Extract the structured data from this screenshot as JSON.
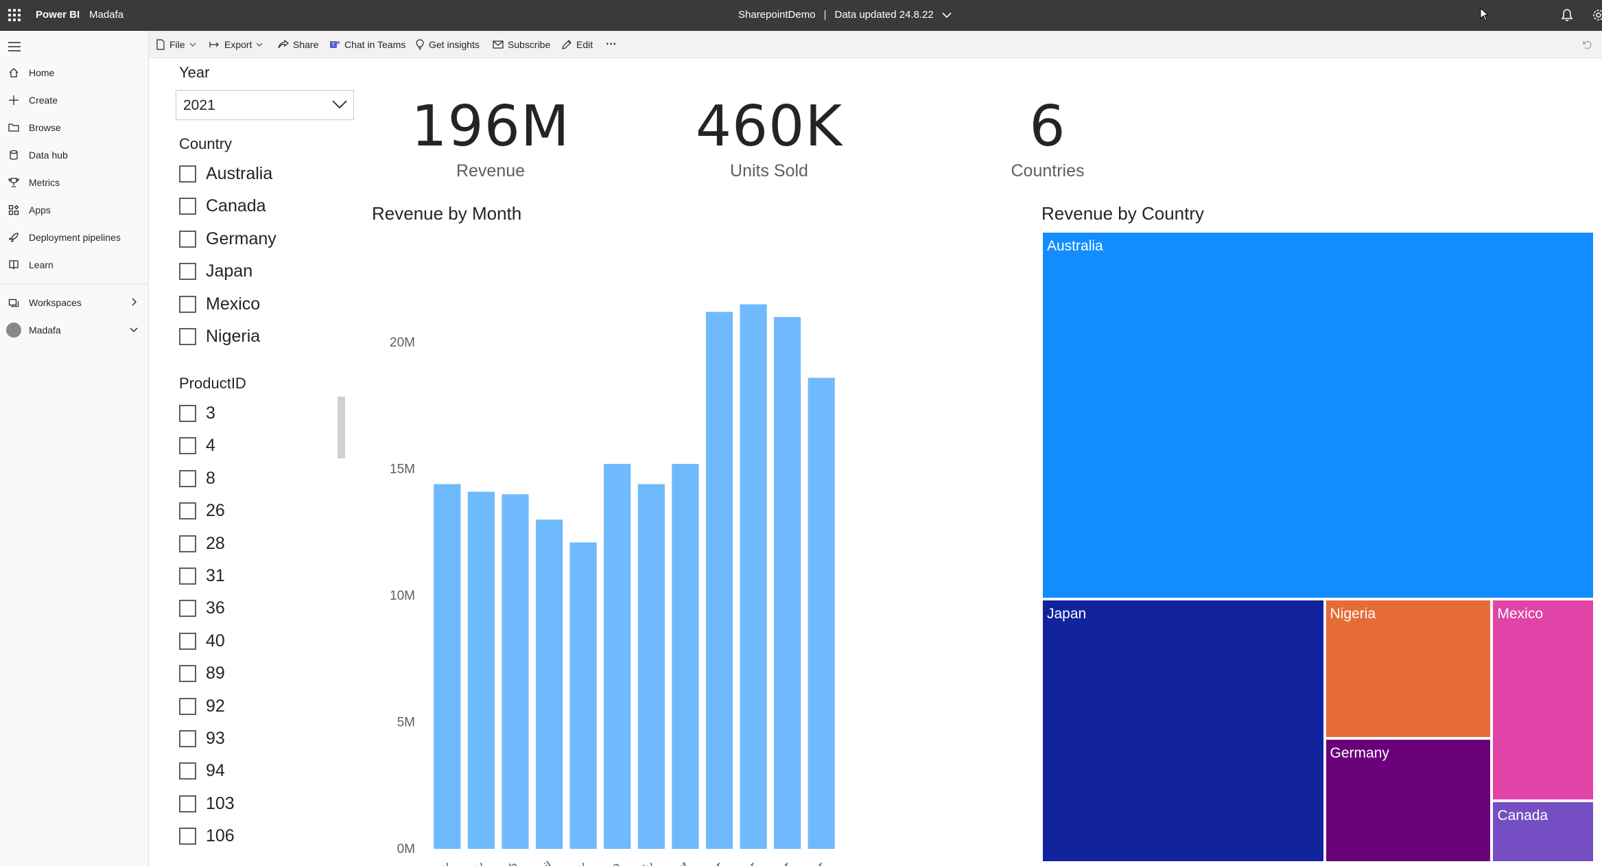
{
  "app": {
    "brand": "Power BI",
    "workspace": "Madafa",
    "report_name": "SharepointDemo",
    "separator": "|",
    "data_updated": "Data updated 24.8.22"
  },
  "sidebar": {
    "items": [
      {
        "label": "Home",
        "icon": "home-icon"
      },
      {
        "label": "Create",
        "icon": "plus-icon"
      },
      {
        "label": "Browse",
        "icon": "folder-icon"
      },
      {
        "label": "Data hub",
        "icon": "database-icon"
      },
      {
        "label": "Metrics",
        "icon": "trophy-icon"
      },
      {
        "label": "Apps",
        "icon": "apps-icon"
      },
      {
        "label": "Deployment pipelines",
        "icon": "rocket-icon"
      },
      {
        "label": "Learn",
        "icon": "book-icon"
      }
    ],
    "workspaces": "Workspaces",
    "current_workspace": "Madafa"
  },
  "actionbar": {
    "file": "File",
    "export": "Export",
    "share": "Share",
    "chat": "Chat in Teams",
    "insights": "Get insights",
    "subscribe": "Subscribe",
    "edit": "Edit",
    "more": "···"
  },
  "slicers": {
    "year": {
      "title": "Year",
      "value": "2021"
    },
    "country": {
      "title": "Country",
      "options": [
        "Australia",
        "Canada",
        "Germany",
        "Japan",
        "Mexico",
        "Nigeria"
      ]
    },
    "product": {
      "title": "ProductID",
      "options": [
        "3",
        "4",
        "8",
        "26",
        "28",
        "31",
        "36",
        "40",
        "89",
        "92",
        "93",
        "94",
        "103",
        "106"
      ]
    }
  },
  "kpis": [
    {
      "value": "196M",
      "label": "Revenue"
    },
    {
      "value": "460K",
      "label": "Units Sold"
    },
    {
      "value": "6",
      "label": "Countries"
    }
  ],
  "colors": {
    "bar": "#6fbafc",
    "australia": "#118dff",
    "japan": "#12239e",
    "nigeria": "#e66c37",
    "germany": "#6b007b",
    "mexico": "#e044a7",
    "canada": "#744ec2"
  },
  "chart_data": [
    {
      "type": "bar",
      "title": "Revenue by Month",
      "categories": [
        "January",
        "February",
        "March",
        "April",
        "May",
        "June",
        "July",
        "August",
        "September",
        "October",
        "November",
        "December"
      ],
      "values": [
        14.4,
        14.1,
        14.0,
        13.0,
        12.1,
        15.2,
        14.4,
        15.2,
        21.2,
        21.5,
        21.0,
        18.6
      ],
      "unit": "M",
      "yticks": [
        "0M",
        "5M",
        "10M",
        "15M",
        "20M"
      ],
      "ylim": [
        0,
        22
      ],
      "grid": false
    },
    {
      "type": "treemap",
      "title": "Revenue by Country",
      "labels": [
        "Australia",
        "Japan",
        "Nigeria",
        "Germany",
        "Mexico",
        "Canada"
      ],
      "values": [
        100.0,
        36.7,
        11.5,
        10.2,
        10.2,
        3.1
      ]
    }
  ]
}
